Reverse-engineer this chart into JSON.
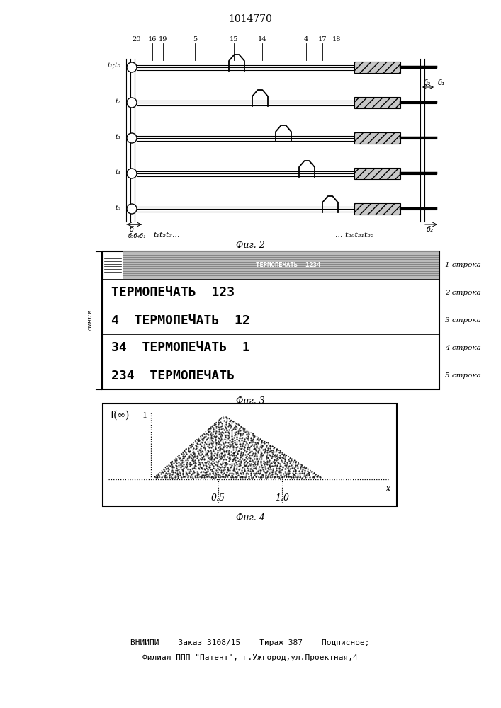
{
  "title": "1014770",
  "fig2_caption": "Фиг. 2",
  "fig3_caption": "Фиг. 3",
  "fig4_caption": "Фиг. 4",
  "footer_line1": "ВНИИПИ    Заказ 3108/15    Тираж 387    Подписное;",
  "footer_line2": "Филиал ППП \"Патент\", г.Ужгород,ул.Проектная,4",
  "fig3_rows": [
    "1 строка",
    "2 строка",
    "3 строка",
    "4 строка",
    "5 строка"
  ],
  "fig3_label_left": "линия",
  "fig3_label_top1": "t₁t₂t₃...",
  "fig3_label_top2": "... t₂₀t₂₁t₂₂",
  "time_labels": [
    "t₁;t₀",
    "t₂",
    "t₃",
    "t₄",
    "t₅"
  ],
  "top_labels": [
    [
      "20",
      193
    ],
    [
      "16",
      215
    ],
    [
      "19",
      230
    ],
    [
      "5",
      275
    ],
    [
      "15",
      330
    ],
    [
      "14",
      370
    ],
    [
      "4",
      432
    ],
    [
      "17",
      455
    ],
    [
      "18",
      475
    ]
  ],
  "bg_color": "#ffffff"
}
